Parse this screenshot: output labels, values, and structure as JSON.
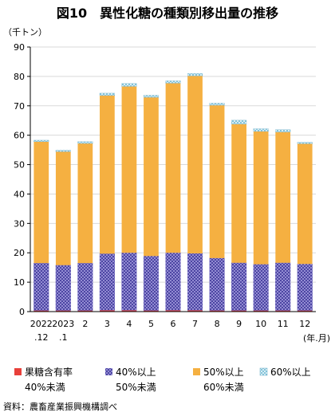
{
  "chart_data": {
    "type": "bar",
    "stacked": true,
    "title": "図10　異性化糖の種類別移出量の推移",
    "unit_label": "（千トン）",
    "x_unit_label": "(年.月)",
    "source": "資料：農畜産業振興機構調べ",
    "ylim": [
      0,
      90
    ],
    "yticks": [
      0,
      10,
      20,
      30,
      40,
      50,
      60,
      70,
      80,
      90
    ],
    "grid": true,
    "legend_position": "bottom",
    "categories": [
      [
        "2022",
        ".12"
      ],
      [
        "2023",
        ".1"
      ],
      [
        "2",
        ""
      ],
      [
        "3",
        ""
      ],
      [
        "4",
        ""
      ],
      [
        "5",
        ""
      ],
      [
        "6",
        ""
      ],
      [
        "7",
        ""
      ],
      [
        "8",
        ""
      ],
      [
        "9",
        ""
      ],
      [
        "10",
        ""
      ],
      [
        "11",
        ""
      ],
      [
        "12",
        ""
      ]
    ],
    "series": [
      {
        "name": [
          "果糖含有率",
          "40%未満"
        ],
        "color": "#e8403a",
        "pattern": "solid",
        "values": [
          0.4,
          0.4,
          0.4,
          0.5,
          0.5,
          0.4,
          0.5,
          0.5,
          0.4,
          0.4,
          0.4,
          0.4,
          0.4
        ]
      },
      {
        "name": [
          "40%以上",
          "50%未満"
        ],
        "color": "#6f66c2",
        "pattern": "cross",
        "values": [
          16.1,
          15.4,
          16.1,
          19.2,
          19.5,
          18.5,
          19.5,
          19.3,
          17.8,
          16.2,
          15.7,
          16.2,
          15.8
        ]
      },
      {
        "name": [
          "50%以上",
          "60%未満"
        ],
        "color": "#f5b041",
        "pattern": "solid",
        "values": [
          41.3,
          38.6,
          40.7,
          53.8,
          56.6,
          54.0,
          57.7,
          60.4,
          52.0,
          47.2,
          45.2,
          44.5,
          40.9
        ]
      },
      {
        "name": [
          "60%以上",
          ""
        ],
        "color": "#5fb3d3",
        "pattern": "dots",
        "values": [
          0.5,
          0.5,
          0.6,
          0.8,
          1.0,
          0.7,
          0.8,
          0.8,
          0.7,
          1.3,
          0.9,
          0.8,
          0.5
        ]
      }
    ]
  }
}
